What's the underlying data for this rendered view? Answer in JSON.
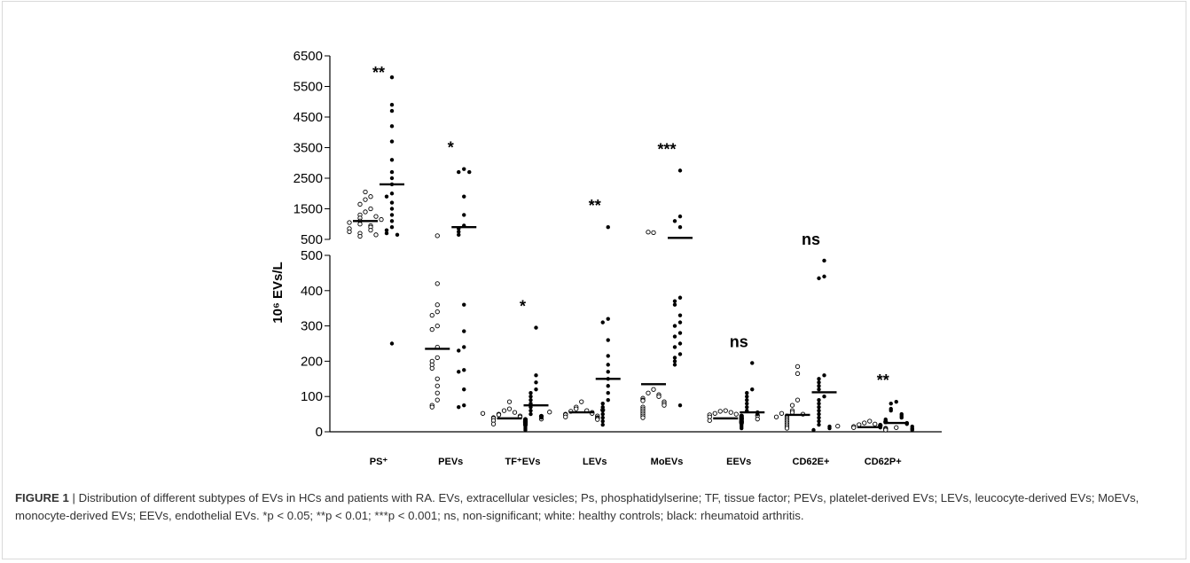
{
  "chart_data": {
    "type": "scatter",
    "ylabel": "10⁶ EVs/L",
    "y_axis": {
      "broken": true,
      "lower_range": [
        0,
        500
      ],
      "upper_range": [
        500,
        6500
      ],
      "lower_ticks": [
        "0",
        "100",
        "200",
        "300",
        "400",
        "500"
      ],
      "upper_ticks": [
        "500",
        "1500",
        "2500",
        "3500",
        "4500",
        "5500",
        "6500"
      ]
    },
    "categories": [
      {
        "label": "PS⁺",
        "significance": "**"
      },
      {
        "label": "PEVs",
        "significance": "*"
      },
      {
        "label": "TF⁺EVs",
        "significance": "*"
      },
      {
        "label": "LEVs",
        "significance": "**"
      },
      {
        "label": "MoEVs",
        "significance": "***"
      },
      {
        "label": "EEVs",
        "significance": "ns"
      },
      {
        "label": "CD62E+",
        "significance": "ns"
      },
      {
        "label": "CD62P+",
        "significance": "**"
      }
    ],
    "series": [
      {
        "name": "healthy controls",
        "marker": "open",
        "color": "#ffffff",
        "means": [
          1100,
          235,
          38,
          55,
          135,
          38,
          48,
          13
        ],
        "points": [
          [
            1800,
            2050,
            1650,
            1400,
            1300,
            1200,
            1100,
            1000,
            950,
            900,
            800,
            700,
            600,
            1500,
            1250,
            850,
            750,
            650,
            1050,
            1150,
            1900
          ],
          [
            420,
            360,
            340,
            330,
            300,
            290,
            240,
            210,
            200,
            190,
            180,
            150,
            130,
            110,
            90,
            75,
            70,
            620
          ],
          [
            85,
            65,
            60,
            55,
            50,
            48,
            45,
            42,
            40,
            38,
            35,
            32,
            30,
            28,
            25,
            22,
            20,
            52,
            36,
            44
          ],
          [
            85,
            70,
            65,
            60,
            58,
            55,
            52,
            50,
            48,
            45,
            42,
            40,
            38,
            35,
            62,
            56
          ],
          [
            120,
            110,
            105,
            100,
            95,
            90,
            88,
            85,
            80,
            75,
            70,
            65,
            60,
            55,
            50,
            45,
            40,
            720,
            740
          ],
          [
            60,
            58,
            55,
            52,
            50,
            48,
            45,
            42,
            40,
            38,
            35,
            32,
            30,
            28,
            25,
            46,
            36
          ],
          [
            185,
            165,
            90,
            75,
            60,
            55,
            50,
            45,
            40,
            35,
            30,
            25,
            20,
            15,
            10,
            52,
            42
          ],
          [
            30,
            25,
            22,
            20,
            18,
            15,
            12,
            10,
            8,
            5,
            28,
            16,
            12
          ]
        ]
      },
      {
        "name": "rheumatoid arthritis",
        "marker": "filled",
        "color": "#000000",
        "means": [
          2300,
          900,
          75,
          150,
          550,
          55,
          112,
          25
        ],
        "points": [
          [
            5800,
            4900,
            4700,
            4200,
            3700,
            3100,
            2700,
            2500,
            2300,
            2000,
            1900,
            1700,
            1500,
            1300,
            1100,
            900,
            800,
            700,
            650,
            250
          ],
          [
            2800,
            2700,
            2700,
            1900,
            1300,
            950,
            850,
            750,
            650,
            360,
            285,
            240,
            230,
            175,
            170,
            120,
            75,
            70
          ],
          [
            295,
            160,
            140,
            120,
            110,
            100,
            90,
            80,
            70,
            60,
            50,
            45,
            40,
            35,
            30,
            25,
            20,
            15,
            10,
            5
          ],
          [
            900,
            320,
            310,
            260,
            215,
            190,
            170,
            150,
            130,
            110,
            90,
            80,
            70,
            60,
            50,
            40,
            30,
            20
          ],
          [
            2750,
            1250,
            1100,
            900,
            380,
            370,
            360,
            330,
            310,
            300,
            280,
            270,
            250,
            240,
            220,
            210,
            200,
            190,
            75
          ],
          [
            195,
            120,
            110,
            100,
            90,
            80,
            70,
            60,
            55,
            50,
            45,
            40,
            35,
            30,
            25,
            20,
            15,
            10
          ],
          [
            485,
            440,
            435,
            160,
            150,
            140,
            130,
            120,
            100,
            90,
            80,
            70,
            60,
            50,
            40,
            30,
            20,
            15,
            10,
            5
          ],
          [
            85,
            80,
            65,
            60,
            50,
            45,
            40,
            35,
            30,
            28,
            25,
            22,
            20,
            18,
            15,
            12,
            10,
            8,
            5
          ]
        ]
      }
    ]
  },
  "caption": {
    "label": "FIGURE 1",
    "separator": "|",
    "text": "Distribution of different subtypes of EVs in HCs and patients with RA. EVs, extracellular vesicles; Ps, phosphatidylserine; TF, tissue factor; PEVs, platelet-derived EVs; LEVs, leucocyte-derived EVs; MoEVs, monocyte-derived EVs; EEVs, endothelial EVs. *p < 0.05; **p < 0.01; ***p < 0.001; ns, non-significant; white: healthy controls; black: rheumatoid arthritis."
  }
}
